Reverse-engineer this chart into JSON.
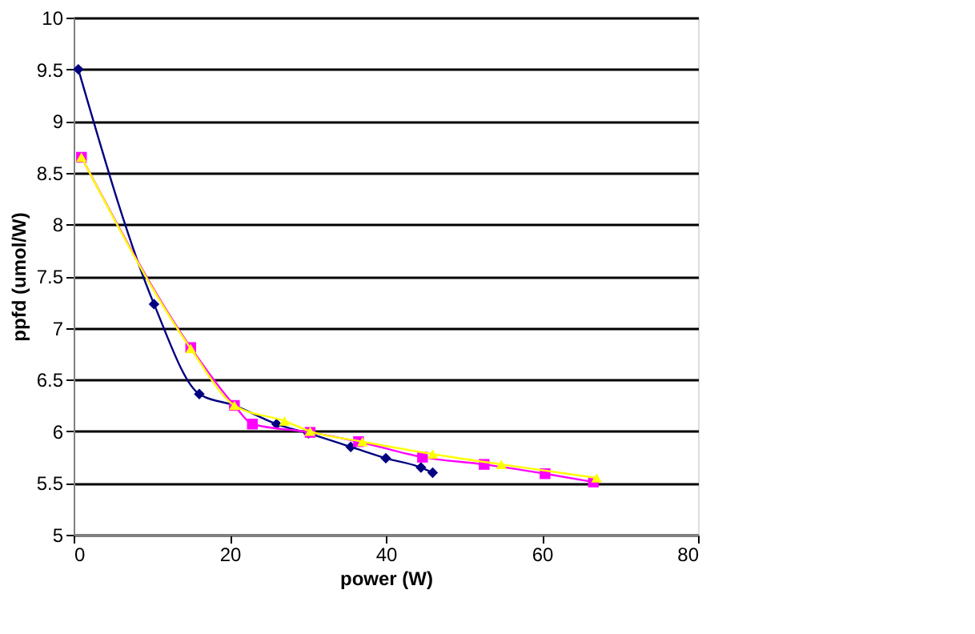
{
  "chart_data": {
    "type": "line",
    "xlabel": "power (W)",
    "ylabel": "ppfd (umol/W)",
    "xlim": [
      0,
      80
    ],
    "xticks": [
      0,
      20,
      40,
      60,
      80
    ],
    "ylim": [
      5,
      10
    ],
    "yticks": [
      5,
      5.5,
      6,
      6.5,
      7,
      7.5,
      8,
      8.5,
      9,
      9.5,
      10
    ],
    "grid": "y",
    "series": [
      {
        "color": "#000080",
        "marker": "diamond",
        "x": [
          0.6,
          10.3,
          16.1,
          20.6,
          26,
          30.1,
          35.5,
          40,
          44.5,
          46
        ],
        "values": [
          9.5,
          7.23,
          6.36,
          6.25,
          6.07,
          5.98,
          5.85,
          5.74,
          5.65,
          5.6
        ]
      },
      {
        "color": "#ff00ff",
        "marker": "square",
        "x": [
          1,
          15,
          20.6,
          22.9,
          30.3,
          36.5,
          44.7,
          52.6,
          60.4,
          66.6
        ],
        "values": [
          8.65,
          6.81,
          6.25,
          6.07,
          5.99,
          5.9,
          5.75,
          5.68,
          5.59,
          5.51
        ]
      },
      {
        "color": "#ffff00",
        "marker": "triangle",
        "x": [
          1,
          15,
          20.6,
          27,
          30.3,
          37,
          46,
          54.8,
          67
        ],
        "values": [
          8.65,
          6.8,
          6.25,
          6.1,
          6.0,
          5.9,
          5.78,
          5.68,
          5.55
        ]
      }
    ]
  }
}
